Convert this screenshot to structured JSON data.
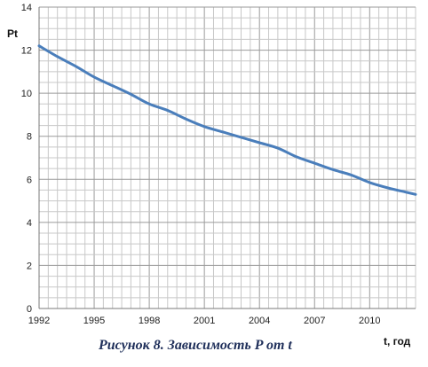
{
  "chart_data": {
    "type": "line",
    "title": "",
    "caption": "Рисунок 8. Зависимость P от t",
    "ylabel": "Pt",
    "xlabel": "t, год",
    "xlim": [
      1992,
      2012.5
    ],
    "ylim": [
      0,
      14
    ],
    "x_ticks": [
      "1992",
      "1995",
      "1998",
      "2001",
      "2004",
      "2007",
      "2010"
    ],
    "y_ticks": [
      "0",
      "2",
      "4",
      "6",
      "8",
      "10",
      "12",
      "14"
    ],
    "grid": true,
    "series": [
      {
        "color": "#4a7ebb",
        "x": [
          1992,
          1993,
          1994,
          1995,
          1996,
          1997,
          1998,
          1999,
          2000,
          2001,
          2002,
          2003,
          2004,
          2005,
          2006,
          2007,
          2008,
          2009,
          2010,
          2011,
          2012,
          2012.5
        ],
        "y": [
          12.2,
          11.7,
          11.25,
          10.75,
          10.35,
          9.95,
          9.5,
          9.2,
          8.8,
          8.45,
          8.2,
          7.95,
          7.7,
          7.45,
          7.05,
          6.75,
          6.45,
          6.2,
          5.85,
          5.6,
          5.4,
          5.3
        ]
      }
    ]
  }
}
